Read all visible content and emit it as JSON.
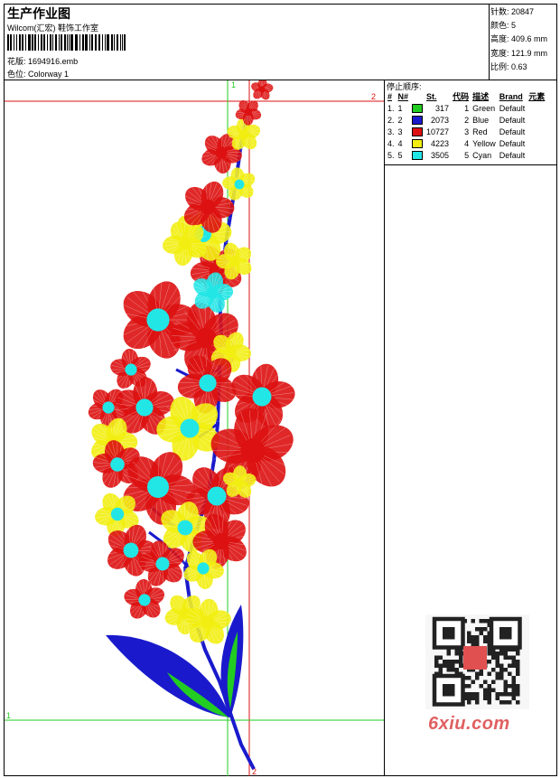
{
  "header": {
    "title": "生产作业图",
    "company": "Wilcom(汇宏) 鞋饰工作室",
    "design_label": "花版:",
    "design_file": "1694916.emb",
    "colorway_label": "色位:",
    "colorway": "Colorway 1"
  },
  "stats": [
    {
      "label": "针数:",
      "value": "20847"
    },
    {
      "label": "颜色:",
      "value": "5"
    },
    {
      "label": "高度:",
      "value": "409.6 mm"
    },
    {
      "label": "宽度:",
      "value": "121.9 mm"
    },
    {
      "label": "比例:",
      "value": "0.63"
    }
  ],
  "stop_sequence": {
    "heading": "停止顺序:",
    "columns": [
      "#",
      "N#",
      "St.",
      "代码",
      "描述",
      "Brand",
      "元素"
    ],
    "rows": [
      {
        "idx": "1.",
        "n": "1",
        "color": "#22cc22",
        "stitches": "317",
        "code": "1",
        "desc": "Green",
        "brand": "Default"
      },
      {
        "idx": "2.",
        "n": "2",
        "color": "#1a1acc",
        "stitches": "2073",
        "code": "2",
        "desc": "Blue",
        "brand": "Default"
      },
      {
        "idx": "3.",
        "n": "3",
        "color": "#dd1111",
        "stitches": "10727",
        "code": "3",
        "desc": "Red",
        "brand": "Default"
      },
      {
        "idx": "4.",
        "n": "4",
        "color": "#f2ee11",
        "stitches": "4223",
        "code": "4",
        "desc": "Yellow",
        "brand": "Default"
      },
      {
        "idx": "5.",
        "n": "5",
        "color": "#22e6e6",
        "stitches": "3505",
        "code": "5",
        "desc": "Cyan",
        "brand": "Default"
      }
    ]
  },
  "guides": {
    "v1": "1",
    "h1": "1",
    "v2": "2",
    "h2": "2",
    "v2b": "2"
  },
  "watermark": "6xiu.com",
  "colors": {
    "green": "#22cc22",
    "blue": "#1a1acc",
    "red": "#dd1111",
    "yellow": "#f2ee11",
    "cyan": "#22e6e6"
  }
}
